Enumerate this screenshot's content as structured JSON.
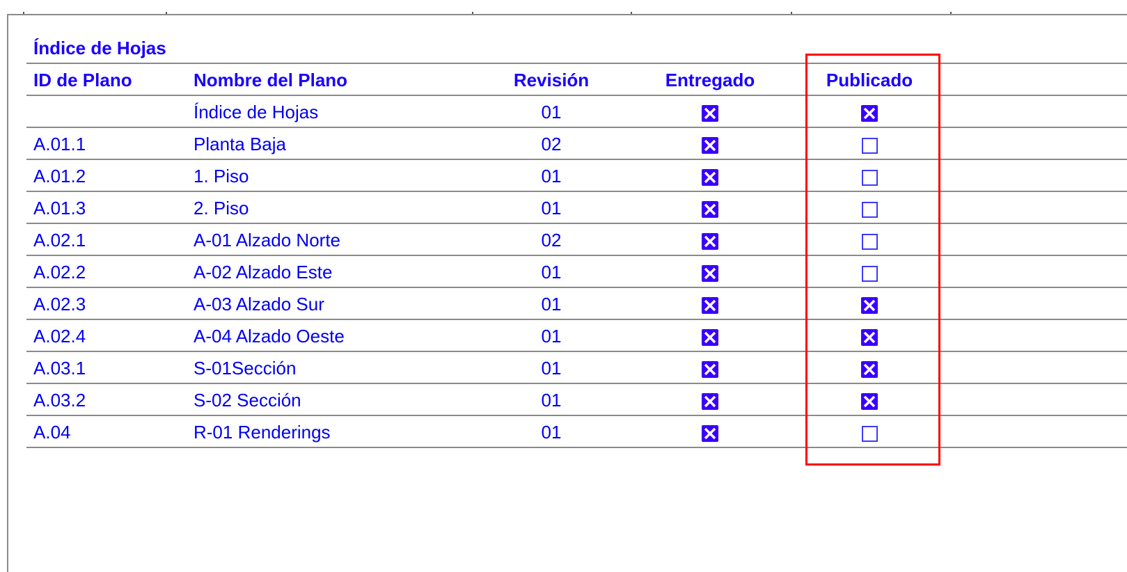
{
  "schedule": {
    "title": "Índice de Hojas",
    "columns": [
      "ID de Plano",
      "Nombre del Plano",
      "Revisión",
      "Entregado",
      "Publicado"
    ],
    "rows": [
      {
        "id": "",
        "name": "Índice de Hojas",
        "rev": "01",
        "entregado": true,
        "publicado": true
      },
      {
        "id": "A.01.1",
        "name": "Planta Baja",
        "rev": "02",
        "entregado": true,
        "publicado": false
      },
      {
        "id": "A.01.2",
        "name": "1. Piso",
        "rev": "01",
        "entregado": true,
        "publicado": false
      },
      {
        "id": "A.01.3",
        "name": "2. Piso",
        "rev": "01",
        "entregado": true,
        "publicado": false
      },
      {
        "id": "A.02.1",
        "name": "A-01 Alzado Norte",
        "rev": "02",
        "entregado": true,
        "publicado": false
      },
      {
        "id": "A.02.2",
        "name": "A-02 Alzado Este",
        "rev": "01",
        "entregado": true,
        "publicado": false
      },
      {
        "id": "A.02.3",
        "name": "A-03 Alzado Sur",
        "rev": "01",
        "entregado": true,
        "publicado": true
      },
      {
        "id": "A.02.4",
        "name": "A-04 Alzado Oeste",
        "rev": "01",
        "entregado": true,
        "publicado": true
      },
      {
        "id": "A.03.1",
        "name": "S-01Sección",
        "rev": "01",
        "entregado": true,
        "publicado": true
      },
      {
        "id": "A.03.2",
        "name": "S-02 Sección",
        "rev": "01",
        "entregado": true,
        "publicado": true
      },
      {
        "id": "A.04",
        "name": "R-01 Renderings",
        "rev": "01",
        "entregado": true,
        "publicado": false
      }
    ]
  },
  "colors": {
    "text": "#0000f0",
    "checkbox": "#3a00ff",
    "highlight": "#ff0000",
    "gridline": "#8a8a8a"
  },
  "highlight_column": "Publicado"
}
